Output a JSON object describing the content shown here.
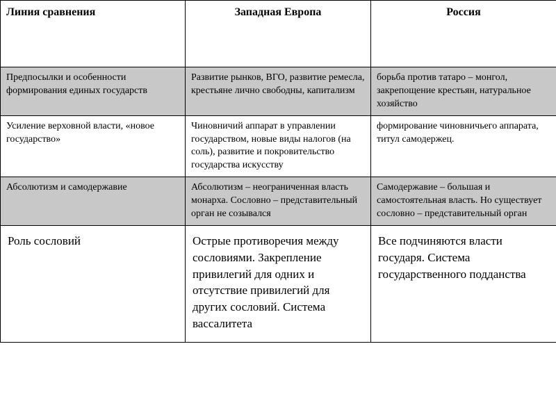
{
  "colors": {
    "gray_row": "#c8c8c8",
    "white_row": "#ffffff",
    "border": "#000000",
    "text": "#000000"
  },
  "typography": {
    "base_family": "Georgia, Times New Roman, serif",
    "header_fontsize_pt": 12,
    "body_fontsize_pt": 10.5,
    "last_row_fontsize_pt": 13
  },
  "columns": [
    "Линия сравнения",
    "Западная Европа",
    "Россия"
  ],
  "rows": [
    {
      "shade": "gray",
      "cells": [
        "Предпосылки и особенности формирования единых государств",
        "Развитие рынков, ВГО, развитие ремесла, крестьяне лично свободны, капитализм",
        " борьба против татаро – монгол, закрепощение крестьян, натуральное хозяйство"
      ]
    },
    {
      "shade": "white",
      "cells": [
        "Усиление верховной власти, «новое государство»",
        "Чиновничий аппарат в управлении государством, новые виды налогов  (на соль), развитие и покровительство государства искусству",
        " формирование чиновничьего аппарата, титул самодержец."
      ]
    },
    {
      "shade": "gray",
      "cells": [
        "Абсолютизм и самодержавие",
        "Абсолютизм – неограниченная власть монарха. Сословно – представительный орган не созывался",
        "Самодержавие – большая и самостоятельная власть. Но существует сословно – представительный орган"
      ]
    },
    {
      "shade": "white",
      "last": true,
      "cells": [
        "Роль сословий",
        "Острые противоречия между сословиями. Закрепление привилегий для одних и отсутствие привилегий для других сословий. Система вассалитета",
        "Все подчиняются власти государя. Система государственного подданства"
      ]
    }
  ]
}
